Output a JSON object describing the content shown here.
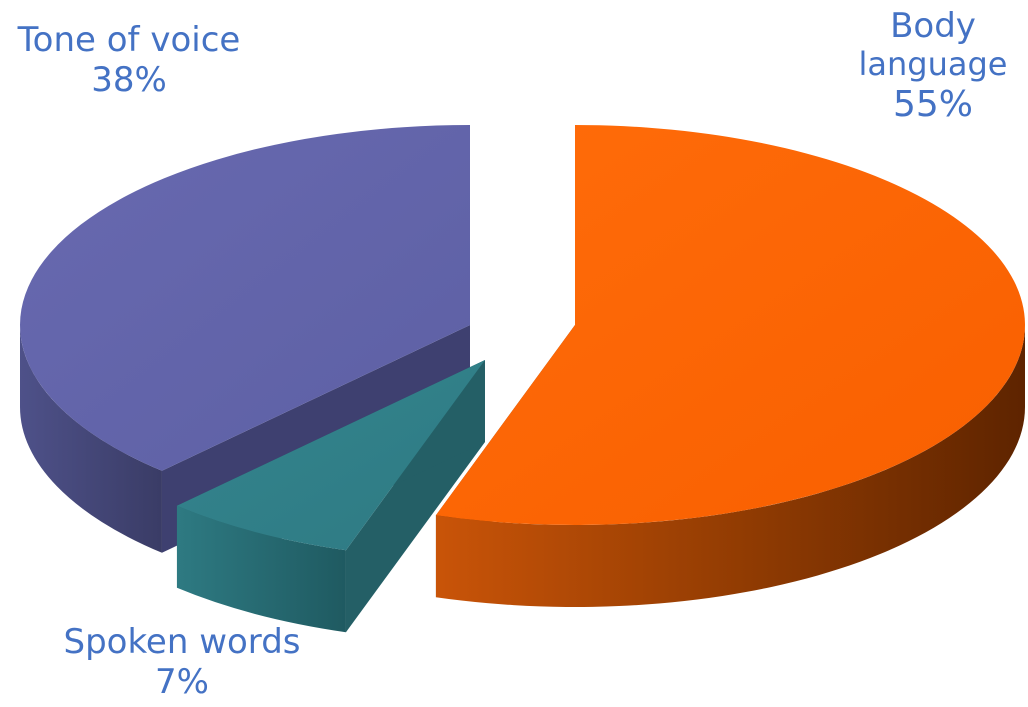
{
  "chart_data": {
    "type": "pie",
    "style": "3d-exploded",
    "slices": [
      {
        "label_lines": [
          "Body",
          "language"
        ],
        "label": "Body language",
        "value": 55,
        "value_label": "55%",
        "color": "#FF6600"
      },
      {
        "label_lines": [
          "Spoken words"
        ],
        "label": "Spoken words",
        "value": 7,
        "value_label": "7%",
        "color": "#31808A"
      },
      {
        "label_lines": [
          "Tone of voice"
        ],
        "label": "Tone of voice",
        "value": 38,
        "value_label": "38%",
        "color": "#6366AB"
      }
    ],
    "label_color": "#4472C4",
    "legend": "none"
  }
}
